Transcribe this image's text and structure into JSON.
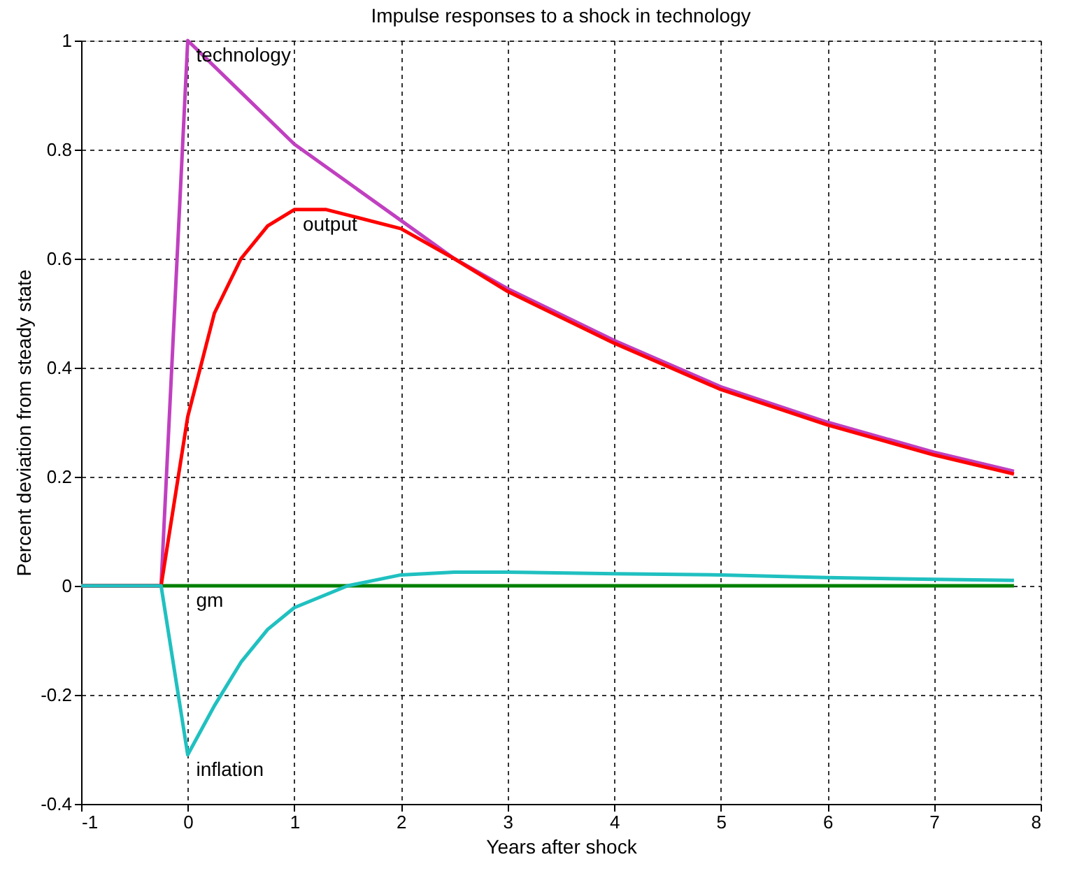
{
  "chart_data": {
    "type": "line",
    "title": "Impulse responses to a shock in technology",
    "xlabel": "Years after shock",
    "ylabel": "Percent deviation from steady state",
    "xlim": [
      -1,
      8
    ],
    "xticks": [
      -1,
      0,
      1,
      2,
      3,
      4,
      5,
      6,
      7,
      8
    ],
    "ylim": [
      -0.4,
      1
    ],
    "yticks": [
      -0.4,
      -0.2,
      0,
      0.2,
      0.4,
      0.6,
      0.8,
      1
    ],
    "grid": true,
    "line_style": "solid",
    "marker": "none",
    "series": [
      {
        "name": "gm",
        "color": "#008000",
        "x": [
          -1,
          -0.25,
          0,
          7.75
        ],
        "values": [
          0,
          0,
          0,
          0
        ]
      },
      {
        "name": "technology",
        "color": "#c040c0",
        "x": [
          -1,
          -0.25,
          0,
          0.5,
          1,
          1.5,
          2,
          2.5,
          3,
          4,
          5,
          6,
          7,
          7.75
        ],
        "values": [
          0,
          0,
          1,
          0.905,
          0.81,
          0.74,
          0.67,
          0.6,
          0.545,
          0.45,
          0.365,
          0.3,
          0.245,
          0.21
        ]
      },
      {
        "name": "output",
        "color": "#ff0000",
        "x": [
          -1,
          -0.25,
          0,
          0.25,
          0.5,
          0.75,
          1,
          1.3,
          1.5,
          2,
          2.5,
          3,
          4,
          5,
          6,
          7,
          7.75
        ],
        "values": [
          0,
          0,
          0.31,
          0.5,
          0.6,
          0.66,
          0.69,
          0.69,
          0.68,
          0.655,
          0.6,
          0.54,
          0.445,
          0.36,
          0.295,
          0.24,
          0.205
        ]
      },
      {
        "name": "inflation",
        "color": "#20c0c0",
        "x": [
          -1,
          -0.25,
          0,
          0.25,
          0.5,
          0.75,
          1,
          1.5,
          2,
          2.5,
          3,
          4,
          5,
          6,
          7,
          7.75
        ],
        "values": [
          0,
          0,
          -0.31,
          -0.22,
          -0.14,
          -0.08,
          -0.04,
          0.0,
          0.02,
          0.025,
          0.025,
          0.022,
          0.02,
          0.015,
          0.012,
          0.01
        ]
      }
    ]
  }
}
